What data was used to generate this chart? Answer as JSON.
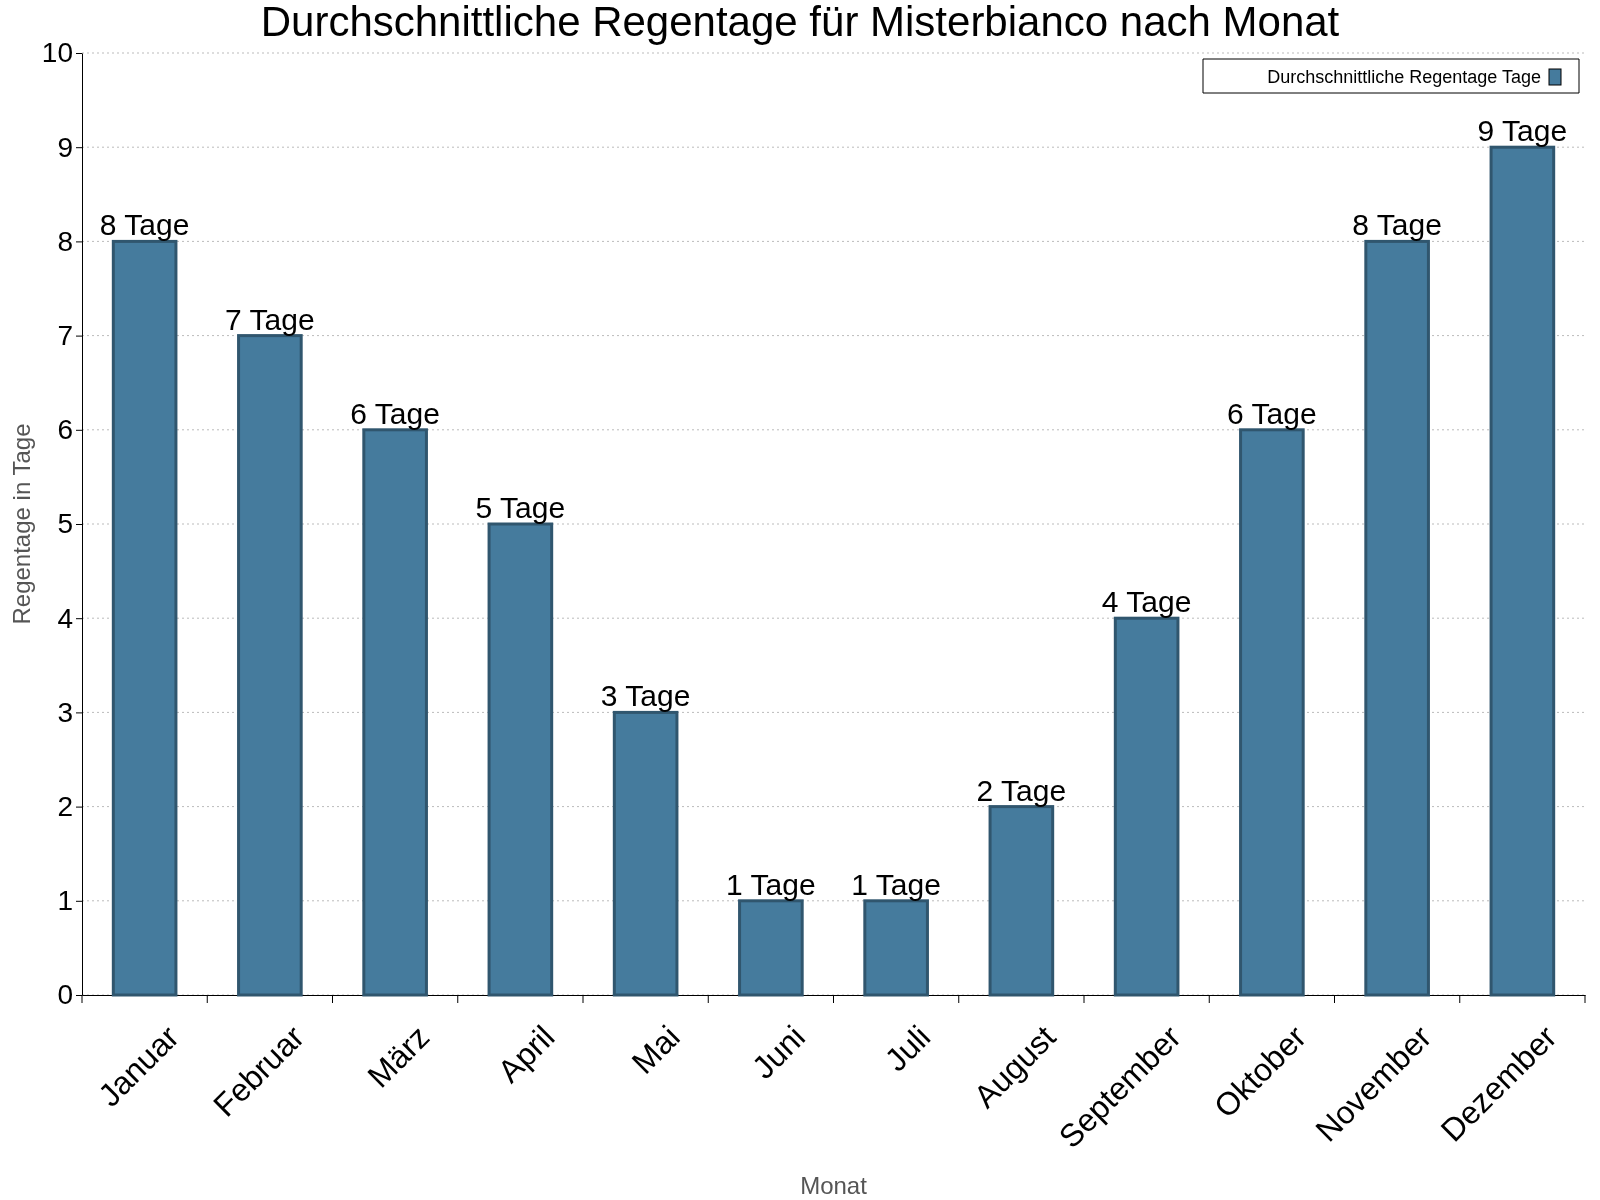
{
  "chart_data": {
    "type": "bar",
    "title": "Durchschnittliche Regentage für Misterbianco nach Monat",
    "xlabel": "Monat",
    "ylabel": "Regentage in Tage",
    "categories": [
      "Januar",
      "Februar",
      "März",
      "April",
      "Mai",
      "Juni",
      "Juli",
      "August",
      "September",
      "Oktober",
      "November",
      "Dezember"
    ],
    "series": [
      {
        "name": "Durchschnittliche Regentage Tage",
        "color": "#457b9d",
        "values": [
          8,
          7,
          6,
          5,
          3,
          1,
          1,
          2,
          4,
          6,
          8,
          9
        ],
        "value_labels": [
          "8 Tage",
          "7 Tage",
          "6 Tage",
          "5 Tage",
          "3 Tage",
          "1 Tage",
          "1 Tage",
          "2 Tage",
          "4 Tage",
          "6 Tage",
          "8 Tage",
          "9 Tage"
        ]
      }
    ],
    "ylim": [
      0,
      10
    ],
    "yticks": [
      0,
      1,
      2,
      3,
      4,
      5,
      6,
      7,
      8,
      9,
      10
    ],
    "grid": "y",
    "legend": "top right"
  }
}
